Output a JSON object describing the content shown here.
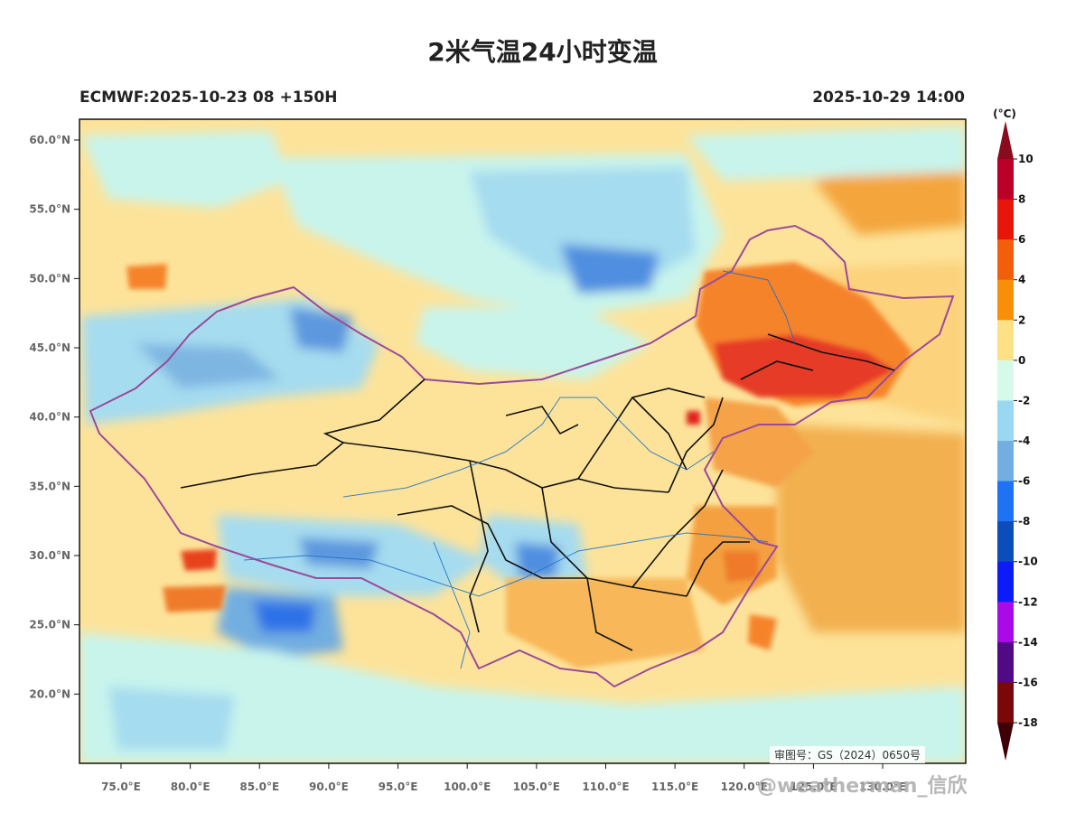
{
  "header": {
    "title": "2米气温24小时变温",
    "model_run": "ECMWF:2025-10-23 08 +150H",
    "valid_time": "2025-10-29 14:00"
  },
  "axes": {
    "lat_labels": [
      "60.0°N",
      "55.0°N",
      "50.0°N",
      "45.0°N",
      "40.0°N",
      "35.0°N",
      "30.0°N",
      "25.0°N",
      "20.0°N"
    ],
    "lat_values": [
      60,
      55,
      50,
      45,
      40,
      35,
      30,
      25,
      20
    ],
    "lon_labels": [
      "75.0°E",
      "80.0°E",
      "85.0°E",
      "90.0°E",
      "95.0°E",
      "100.0°E",
      "105.0°E",
      "110.0°E",
      "115.0°E",
      "120.0°E",
      "125.0°E",
      "130.0°E"
    ],
    "lon_values": [
      75,
      80,
      85,
      90,
      95,
      100,
      105,
      110,
      115,
      120,
      125,
      130
    ],
    "lat_range": [
      15,
      61.5
    ],
    "lon_range": [
      72,
      136
    ]
  },
  "colorbar": {
    "unit": "(°C)",
    "tick_labels": [
      "10",
      "8",
      "6",
      "4",
      "2",
      "0",
      "-2",
      "-4",
      "-6",
      "-8",
      "-10",
      "-12",
      "-14",
      "-16",
      "-18"
    ],
    "colors": [
      "#ba0029",
      "#e8150b",
      "#f25f0c",
      "#f98f09",
      "#fde184",
      "#d5fae9",
      "#9ad8f2",
      "#72aee0",
      "#1e72f4",
      "#0c4dbc",
      "#0b1cf8",
      "#a90ae5",
      "#500a86",
      "#7a0808"
    ],
    "top_arrow_color": "#8a0a1e",
    "bottom_arrow_color": "#3d0004"
  },
  "footer": {
    "approval_number": "审图号：GS（2024）0650号",
    "watermark": "@weatherman_信欣"
  }
}
